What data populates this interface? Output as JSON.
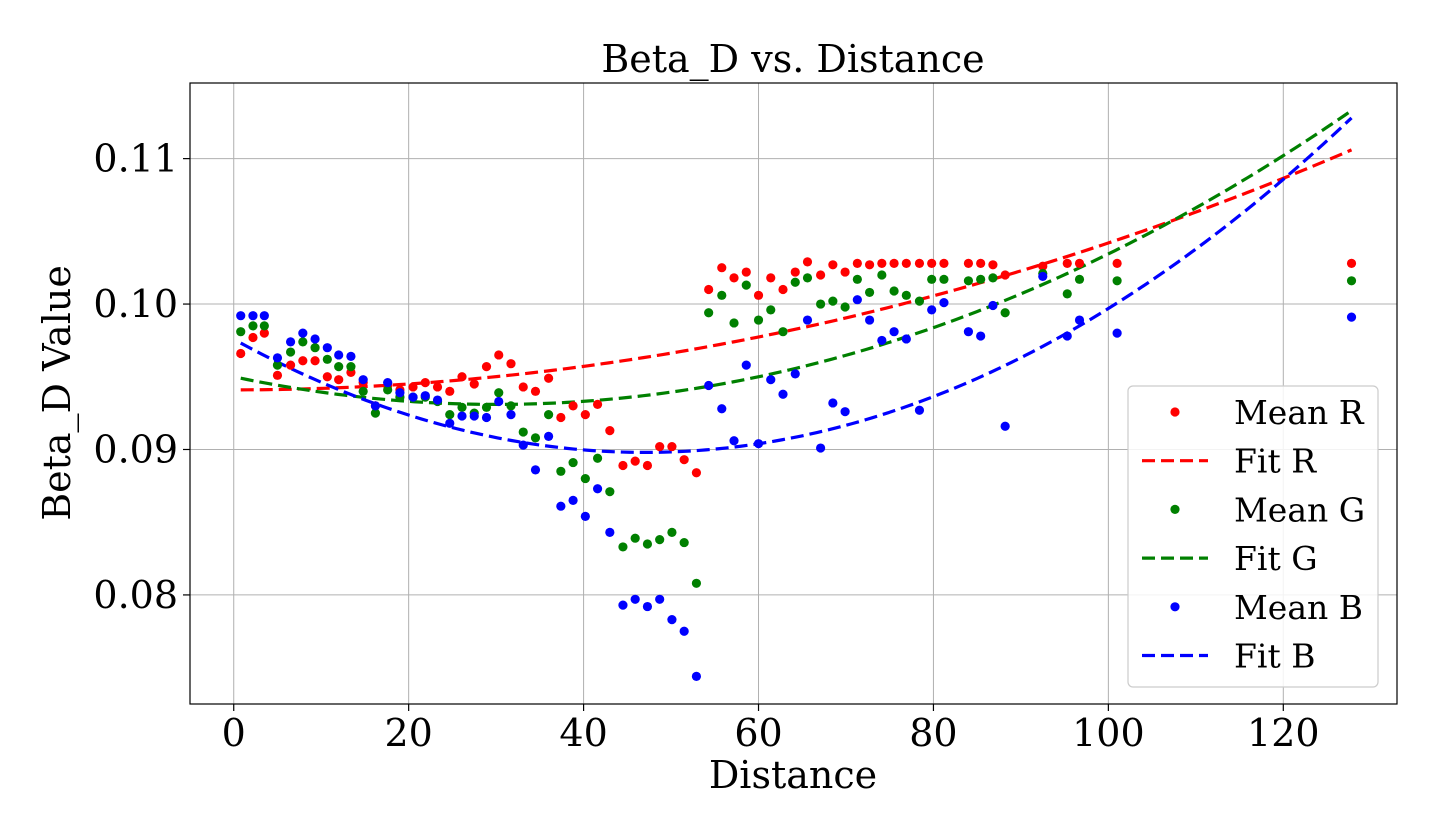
{
  "chart_data": {
    "type": "scatter",
    "title": "Beta_D vs. Distance",
    "xlabel": "Distance",
    "ylabel": "Beta_D Value",
    "xlim": [
      -5,
      133
    ],
    "ylim": [
      0.0725,
      0.1152
    ],
    "xticks": [
      0,
      20,
      40,
      60,
      80,
      100,
      120
    ],
    "yticks": [
      0.08,
      0.09,
      0.1,
      0.11
    ],
    "ytick_labels": [
      "0.08",
      "0.09",
      "0.10",
      "0.11"
    ],
    "grid": true,
    "legend_position": "lower-right",
    "x": [
      0.8,
      2.2,
      3.5,
      5.0,
      6.5,
      7.9,
      9.3,
      10.7,
      12.0,
      13.4,
      14.8,
      16.2,
      17.6,
      19.0,
      20.5,
      21.9,
      23.3,
      24.7,
      26.1,
      27.5,
      28.9,
      30.3,
      31.7,
      33.1,
      34.5,
      36.0,
      37.4,
      38.8,
      40.2,
      41.6,
      43.0,
      44.5,
      45.9,
      47.3,
      48.7,
      50.1,
      51.5,
      52.9,
      54.3,
      55.8,
      57.2,
      58.6,
      60.0,
      61.4,
      62.8,
      64.2,
      65.6,
      67.1,
      68.5,
      69.9,
      71.3,
      72.7,
      74.1,
      75.5,
      76.9,
      78.4,
      79.8,
      81.2,
      84.0,
      85.4,
      86.8,
      88.2,
      92.5,
      95.3,
      96.7,
      101.0,
      127.8
    ],
    "series": [
      {
        "name": "Mean R",
        "color": "#ff0000",
        "marker": "dot",
        "values": [
          0.0966,
          0.0977,
          0.098,
          0.0951,
          0.0958,
          0.0961,
          0.0961,
          0.095,
          0.0948,
          0.0953,
          0.0946,
          0.093,
          0.0944,
          0.0941,
          0.0943,
          0.0946,
          0.0943,
          0.094,
          0.095,
          0.0945,
          0.0957,
          0.0965,
          0.0959,
          0.0943,
          0.094,
          0.0949,
          0.0922,
          0.093,
          0.0924,
          0.0931,
          0.0913,
          0.0889,
          0.0892,
          0.0889,
          0.0902,
          0.0902,
          0.0893,
          0.0884,
          0.101,
          0.1025,
          0.1018,
          0.1022,
          0.1006,
          0.1018,
          0.101,
          0.1022,
          0.1029,
          0.102,
          0.1027,
          0.1022,
          0.1028,
          0.1027,
          0.1028,
          0.1028,
          0.1028,
          0.1028,
          0.1028,
          0.1028,
          0.1028,
          0.1028,
          0.1027,
          0.102,
          0.1026,
          0.1028,
          0.1028,
          0.1028,
          0.1028
        ]
      },
      {
        "name": "Mean G",
        "color": "#008000",
        "marker": "dot",
        "values": [
          0.0981,
          0.0985,
          0.0985,
          0.0958,
          0.0967,
          0.0974,
          0.097,
          0.0962,
          0.0957,
          0.0957,
          0.094,
          0.0925,
          0.0941,
          0.0936,
          0.0936,
          0.0936,
          0.0933,
          0.0924,
          0.0929,
          0.0925,
          0.0929,
          0.0939,
          0.093,
          0.0912,
          0.0908,
          0.0924,
          0.0885,
          0.0891,
          0.088,
          0.0894,
          0.0871,
          0.0833,
          0.0839,
          0.0835,
          0.0838,
          0.0843,
          0.0836,
          0.0808,
          0.0994,
          0.1006,
          0.0987,
          0.1013,
          0.0989,
          0.0996,
          0.0981,
          0.1015,
          0.1018,
          0.1,
          0.1002,
          0.0998,
          0.1017,
          0.1008,
          0.102,
          0.1009,
          0.1006,
          0.1002,
          0.1017,
          0.1017,
          0.1016,
          0.1017,
          0.1018,
          0.0994,
          0.1021,
          0.1007,
          0.1017,
          0.1016,
          0.1016
        ]
      },
      {
        "name": "Mean B",
        "color": "#0000ff",
        "marker": "dot",
        "values": [
          0.0992,
          0.0992,
          0.0992,
          0.0963,
          0.0974,
          0.098,
          0.0976,
          0.097,
          0.0965,
          0.0964,
          0.0948,
          0.093,
          0.0946,
          0.0939,
          0.0936,
          0.0937,
          0.0934,
          0.0918,
          0.0923,
          0.0923,
          0.0922,
          0.0933,
          0.0924,
          0.0903,
          0.0886,
          0.0909,
          0.0861,
          0.0865,
          0.0854,
          0.0873,
          0.0843,
          0.0793,
          0.0797,
          0.0792,
          0.0797,
          0.0783,
          0.0775,
          0.0744,
          0.0944,
          0.0928,
          0.0906,
          0.0958,
          0.0904,
          0.0948,
          0.0938,
          0.0952,
          0.0989,
          0.0901,
          0.0932,
          0.0926,
          0.1003,
          0.0989,
          0.0975,
          0.0981,
          0.0976,
          0.0927,
          0.0996,
          0.1001,
          0.0981,
          0.0978,
          0.0999,
          0.0916,
          0.1019,
          0.0978,
          0.0989,
          0.098,
          0.0991
        ]
      }
    ],
    "fits": [
      {
        "name": "Fit R",
        "color": "#ff0000",
        "style": "dashed",
        "vertex_x": 0.0,
        "vertex_y": 0.0941,
        "end_x": 127.8,
        "end_y": 0.1106
      },
      {
        "name": "Fit G",
        "color": "#008000",
        "style": "dashed",
        "vertex_x": 30.0,
        "vertex_y": 0.0931,
        "end_x": 127.8,
        "end_y": 0.1133
      },
      {
        "name": "Fit B",
        "color": "#0000ff",
        "style": "dashed",
        "vertex_x": 47.0,
        "vertex_y": 0.0898,
        "end_x": 127.8,
        "end_y": 0.1128
      }
    ],
    "legend_entries": [
      "Mean R",
      "Fit R",
      "Mean G",
      "Fit G",
      "Mean B",
      "Fit B"
    ]
  }
}
